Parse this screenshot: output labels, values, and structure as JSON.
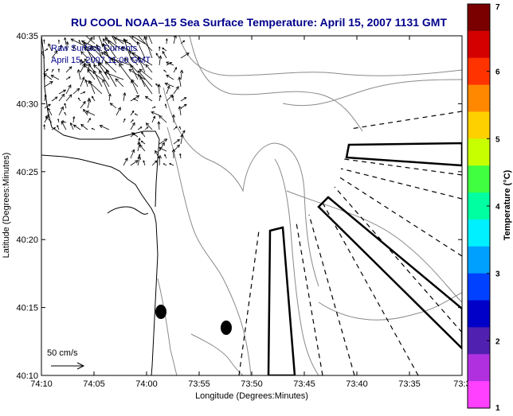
{
  "title": "RU COOL  NOAA–15  Sea Surface Temperature:  April 15, 2007 1131 GMT",
  "subtitle": {
    "line1": "Raw Surface Currents",
    "line2": "April 15, 2007 11:00 GMT"
  },
  "xlabel": "Longitude (Degrees:Minutes)",
  "ylabel": "Latitude (Degrees:Minutes)",
  "x_ticks": [
    "74:10",
    "74:05",
    "74:00",
    "73:55",
    "73:50",
    "73:45",
    "73:40",
    "73:35",
    "73:3"
  ],
  "y_ticks": [
    "40:35",
    "40:30",
    "40:25",
    "40:20",
    "40:15",
    "40:10"
  ],
  "scale_label": "50 cm/s",
  "colorbar": {
    "label": "Temperature (°C)",
    "ticks": [
      "7",
      "6",
      "5",
      "4",
      "3",
      "2",
      "1"
    ],
    "colors": [
      "#7a0000",
      "#d40000",
      "#ff3300",
      "#ff8800",
      "#ffd000",
      "#c8ff00",
      "#40ff40",
      "#00ffa0",
      "#00f0ff",
      "#00a0ff",
      "#0040ff",
      "#0000c8",
      "#5020b0",
      "#b030e0",
      "#ff40ff"
    ]
  },
  "colors": {
    "title": "#00008b",
    "axis": "#000000",
    "contour": "#8a8a8a",
    "coast": "#000000"
  }
}
